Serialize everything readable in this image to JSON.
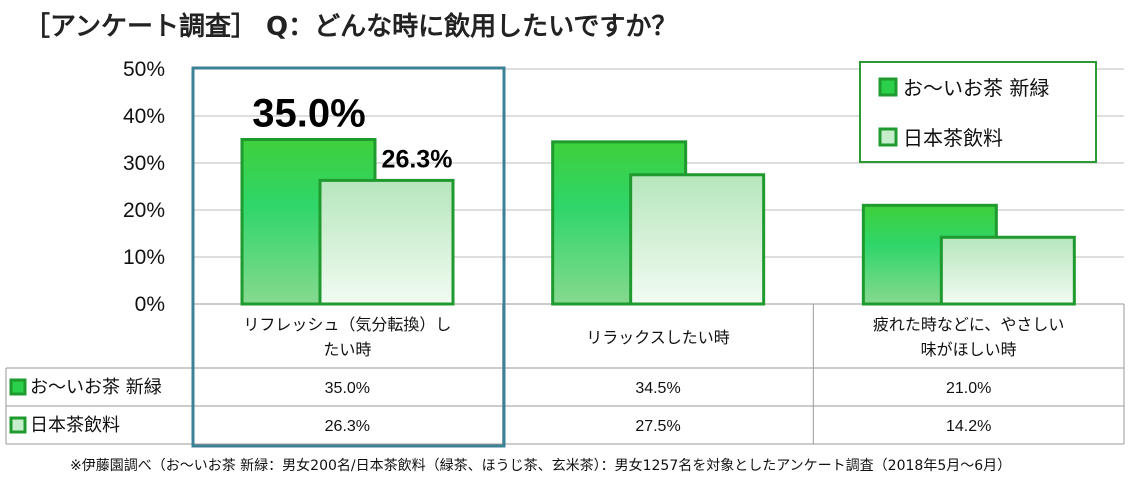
{
  "title": "［アンケート調査］ Q：どんな時に飲用したいですか？",
  "footnote": "※伊藤園調べ（お～いお茶 新緑：男女200名/日本茶飲料（緑茶、ほうじ茶、玄米茶）：男女1257名を対象としたアンケート調査（2018年5月～6月）",
  "colors": {
    "series1": "#2bd04a",
    "series2": "#c7eecb",
    "border": "#1f9a2e",
    "highlight": "#3b8296"
  },
  "chart_data": {
    "type": "bar",
    "categories": [
      [
        "リフレッシュ（気分転換）し",
        "たい時"
      ],
      [
        "リラックスしたい時"
      ],
      [
        "疲れた時などに、やさしい",
        "味がほしい時"
      ]
    ],
    "series": [
      {
        "name": "お～いお茶 新緑",
        "values": [
          35.0,
          34.5,
          21.0
        ]
      },
      {
        "name": "日本茶飲料",
        "values": [
          26.3,
          27.5,
          14.2
        ]
      }
    ],
    "y_ticks": [
      "0%",
      "10%",
      "20%",
      "30%",
      "40%",
      "50%"
    ],
    "ylim": [
      0,
      50
    ],
    "legend_position": "top-right",
    "grid": true,
    "table": {
      "row_labels": [
        "お～いお茶 新緑",
        "日本茶飲料"
      ],
      "rows": [
        [
          "35.0%",
          "34.5%",
          "21.0%"
        ],
        [
          "26.3%",
          "27.5%",
          "14.2%"
        ]
      ]
    },
    "annotations": [
      "35.0%",
      "26.3%"
    ]
  }
}
